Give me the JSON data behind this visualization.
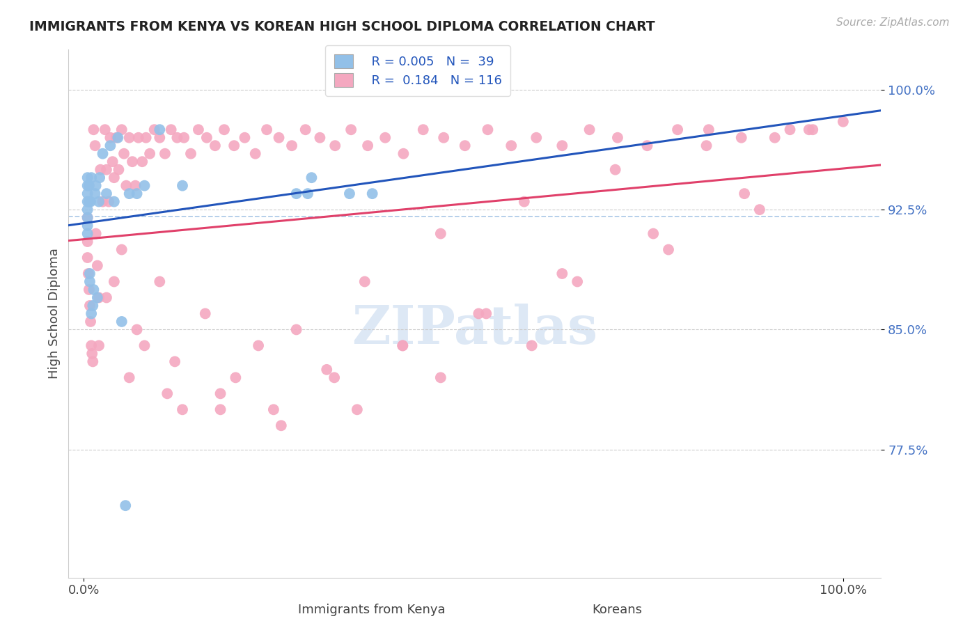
{
  "title": "IMMIGRANTS FROM KENYA VS KOREAN HIGH SCHOOL DIPLOMA CORRELATION CHART",
  "source": "Source: ZipAtlas.com",
  "ylabel": "High School Diploma",
  "yaxis_labels": [
    "77.5%",
    "85.0%",
    "92.5%",
    "100.0%"
  ],
  "yaxis_values": [
    0.775,
    0.85,
    0.925,
    1.0
  ],
  "ylim": [
    0.695,
    1.025
  ],
  "xlim": [
    -0.02,
    1.05
  ],
  "blue_color": "#92C0E8",
  "pink_color": "#F4A8C0",
  "blue_line_color": "#2255BB",
  "pink_line_color": "#E0406A",
  "dashed_color": "#B0CCE8",
  "watermark_color": "#DDE8F5",
  "kenya_x": [
    0.005,
    0.005,
    0.005,
    0.005,
    0.005,
    0.005,
    0.005,
    0.005,
    0.007,
    0.007,
    0.008,
    0.008,
    0.009,
    0.01,
    0.01,
    0.012,
    0.013,
    0.015,
    0.016,
    0.018,
    0.02,
    0.021,
    0.025,
    0.03,
    0.035,
    0.04,
    0.045,
    0.05,
    0.055,
    0.06,
    0.07,
    0.08,
    0.1,
    0.13,
    0.28,
    0.295,
    0.3,
    0.35,
    0.38
  ],
  "kenya_y": [
    0.93,
    0.935,
    0.94,
    0.945,
    0.925,
    0.92,
    0.915,
    0.91,
    0.93,
    0.94,
    0.88,
    0.885,
    0.93,
    0.945,
    0.86,
    0.865,
    0.875,
    0.935,
    0.94,
    0.87,
    0.93,
    0.945,
    0.96,
    0.935,
    0.965,
    0.93,
    0.97,
    0.855,
    0.74,
    0.935,
    0.935,
    0.94,
    0.975,
    0.94,
    0.935,
    0.935,
    0.945,
    0.935,
    0.935
  ],
  "korean_x": [
    0.005,
    0.005,
    0.005,
    0.006,
    0.007,
    0.008,
    0.009,
    0.01,
    0.011,
    0.012,
    0.013,
    0.015,
    0.016,
    0.018,
    0.02,
    0.022,
    0.025,
    0.028,
    0.03,
    0.033,
    0.035,
    0.038,
    0.04,
    0.043,
    0.046,
    0.05,
    0.053,
    0.056,
    0.06,
    0.064,
    0.068,
    0.072,
    0.077,
    0.082,
    0.087,
    0.093,
    0.1,
    0.107,
    0.115,
    0.123,
    0.132,
    0.141,
    0.151,
    0.162,
    0.173,
    0.185,
    0.198,
    0.212,
    0.226,
    0.241,
    0.257,
    0.274,
    0.292,
    0.311,
    0.331,
    0.352,
    0.374,
    0.397,
    0.421,
    0.447,
    0.474,
    0.502,
    0.532,
    0.563,
    0.596,
    0.63,
    0.666,
    0.703,
    0.742,
    0.782,
    0.823,
    0.866,
    0.91,
    0.955,
    1.0,
    0.04,
    0.08,
    0.13,
    0.2,
    0.28,
    0.37,
    0.47,
    0.58,
    0.7,
    0.82,
    0.93,
    0.03,
    0.07,
    0.12,
    0.18,
    0.25,
    0.33,
    0.42,
    0.52,
    0.63,
    0.75,
    0.87,
    0.96,
    0.05,
    0.1,
    0.16,
    0.23,
    0.32,
    0.42,
    0.53,
    0.65,
    0.77,
    0.89,
    0.02,
    0.06,
    0.11,
    0.18,
    0.26,
    0.36,
    0.47,
    0.59
  ],
  "korean_y": [
    0.92,
    0.905,
    0.895,
    0.885,
    0.875,
    0.865,
    0.855,
    0.84,
    0.835,
    0.83,
    0.975,
    0.965,
    0.91,
    0.89,
    0.87,
    0.95,
    0.93,
    0.975,
    0.95,
    0.93,
    0.97,
    0.955,
    0.945,
    0.97,
    0.95,
    0.975,
    0.96,
    0.94,
    0.97,
    0.955,
    0.94,
    0.97,
    0.955,
    0.97,
    0.96,
    0.975,
    0.97,
    0.96,
    0.975,
    0.97,
    0.97,
    0.96,
    0.975,
    0.97,
    0.965,
    0.975,
    0.965,
    0.97,
    0.96,
    0.975,
    0.97,
    0.965,
    0.975,
    0.97,
    0.965,
    0.975,
    0.965,
    0.97,
    0.96,
    0.975,
    0.97,
    0.965,
    0.975,
    0.965,
    0.97,
    0.965,
    0.975,
    0.97,
    0.965,
    0.975,
    0.975,
    0.97,
    0.97,
    0.975,
    0.98,
    0.88,
    0.84,
    0.8,
    0.82,
    0.85,
    0.88,
    0.91,
    0.93,
    0.95,
    0.965,
    0.975,
    0.87,
    0.85,
    0.83,
    0.81,
    0.8,
    0.82,
    0.84,
    0.86,
    0.885,
    0.91,
    0.935,
    0.975,
    0.9,
    0.88,
    0.86,
    0.84,
    0.825,
    0.84,
    0.86,
    0.88,
    0.9,
    0.925,
    0.84,
    0.82,
    0.81,
    0.8,
    0.79,
    0.8,
    0.82,
    0.84
  ]
}
